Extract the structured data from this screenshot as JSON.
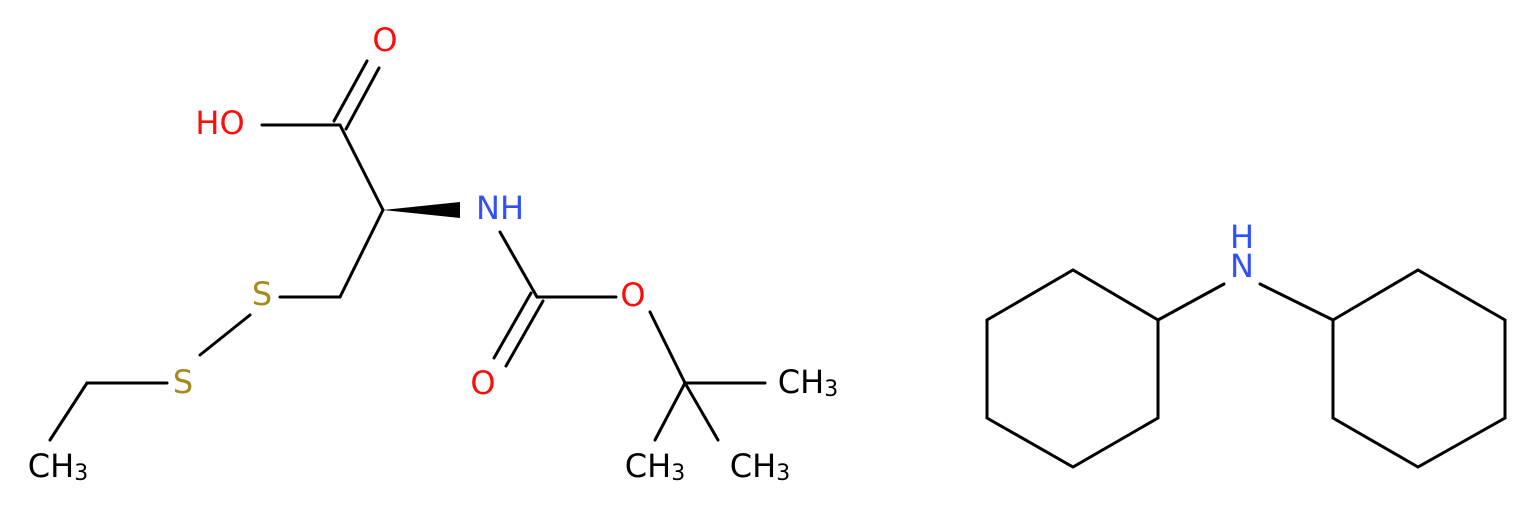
{
  "atoms": [
    {
      "label": "O"
    },
    {
      "label": "HO"
    },
    {
      "label": "NH"
    },
    {
      "label": "S"
    },
    {
      "label": "S"
    },
    {
      "label": "CH",
      "sub": "3"
    },
    {
      "label": "O"
    },
    {
      "label": "O"
    },
    {
      "label": "CH",
      "sub": "3"
    },
    {
      "label": "CH",
      "sub": "3"
    },
    {
      "label": "CH",
      "sub": "3"
    },
    {
      "label": "H"
    },
    {
      "label": "N"
    }
  ]
}
